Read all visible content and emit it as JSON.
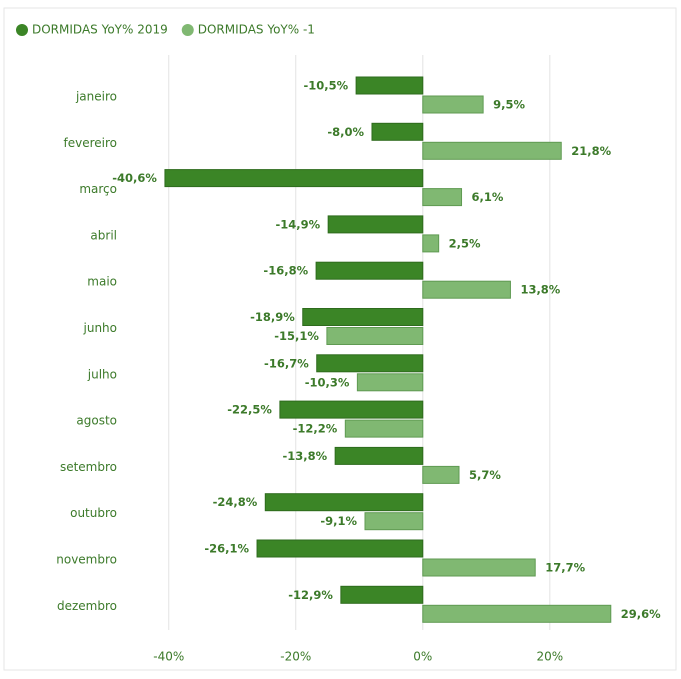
{
  "chart_data": {
    "type": "barh",
    "categories": [
      "janeiro",
      "fevereiro",
      "março",
      "abril",
      "maio",
      "junho",
      "julho",
      "agosto",
      "setembro",
      "outubro",
      "novembro",
      "dezembro"
    ],
    "series": [
      {
        "name": "DORMIDAS YoY% 2019",
        "color": "#3b8526",
        "values": [
          -10.5,
          -8.0,
          -40.6,
          -14.9,
          -16.8,
          -18.9,
          -16.7,
          -22.5,
          -13.8,
          -24.8,
          -26.1,
          -12.9
        ],
        "value_labels": [
          "-10,5%",
          "-8,0%",
          "-40,6%",
          "-14,9%",
          "-16,8%",
          "-18,9%",
          "-16,7%",
          "-22,5%",
          "-13,8%",
          "-24,8%",
          "-26,1%",
          "-12,9%"
        ]
      },
      {
        "name": "DORMIDAS YoY% -1",
        "color": "#80b872",
        "values": [
          9.5,
          21.8,
          6.1,
          2.5,
          13.8,
          -15.1,
          -10.3,
          -12.2,
          5.7,
          -9.1,
          17.7,
          29.6
        ],
        "value_labels": [
          "9,5%",
          "21,8%",
          "6,1%",
          "2,5%",
          "13,8%",
          "-15,1%",
          "-10,3%",
          "-12,2%",
          "5,7%",
          "-9,1%",
          "17,7%",
          "29,6%"
        ]
      }
    ],
    "xlim": [
      -45,
      34.2
    ],
    "xticks": [
      {
        "value": -40,
        "label": "-40%"
      },
      {
        "value": -20,
        "label": "-20%"
      },
      {
        "value": 0,
        "label": "0%"
      },
      {
        "value": 20,
        "label": "20%"
      }
    ],
    "grid": true
  }
}
